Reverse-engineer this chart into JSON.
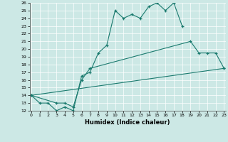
{
  "xlabel": "Humidex (Indice chaleur)",
  "background_color": "#cce8e5",
  "line_color": "#1a7a6e",
  "xlim": [
    0,
    23
  ],
  "ylim": [
    12,
    26
  ],
  "xticks": [
    0,
    1,
    2,
    3,
    4,
    5,
    6,
    7,
    8,
    9,
    10,
    11,
    12,
    13,
    14,
    15,
    16,
    17,
    18,
    19,
    20,
    21,
    22,
    23
  ],
  "yticks": [
    12,
    13,
    14,
    15,
    16,
    17,
    18,
    19,
    20,
    21,
    22,
    23,
    24,
    25,
    26
  ],
  "lines": [
    {
      "x": [
        0,
        1,
        2,
        3,
        4,
        5,
        6,
        7,
        8,
        9,
        10,
        11,
        12,
        13,
        14,
        15,
        16,
        17,
        18
      ],
      "y": [
        14,
        13,
        13,
        12,
        12.5,
        12,
        16.5,
        17,
        19.5,
        20.5,
        25,
        24,
        24.5,
        24,
        25.5,
        26,
        25,
        26,
        23
      ]
    },
    {
      "x": [
        0,
        3,
        4,
        5,
        6,
        7,
        19,
        20,
        21,
        22,
        23
      ],
      "y": [
        14,
        13,
        13,
        12.5,
        16,
        17.5,
        21,
        19.5,
        19.5,
        19.5,
        17.5
      ]
    },
    {
      "x": [
        0,
        23
      ],
      "y": [
        14,
        17.5
      ]
    }
  ]
}
